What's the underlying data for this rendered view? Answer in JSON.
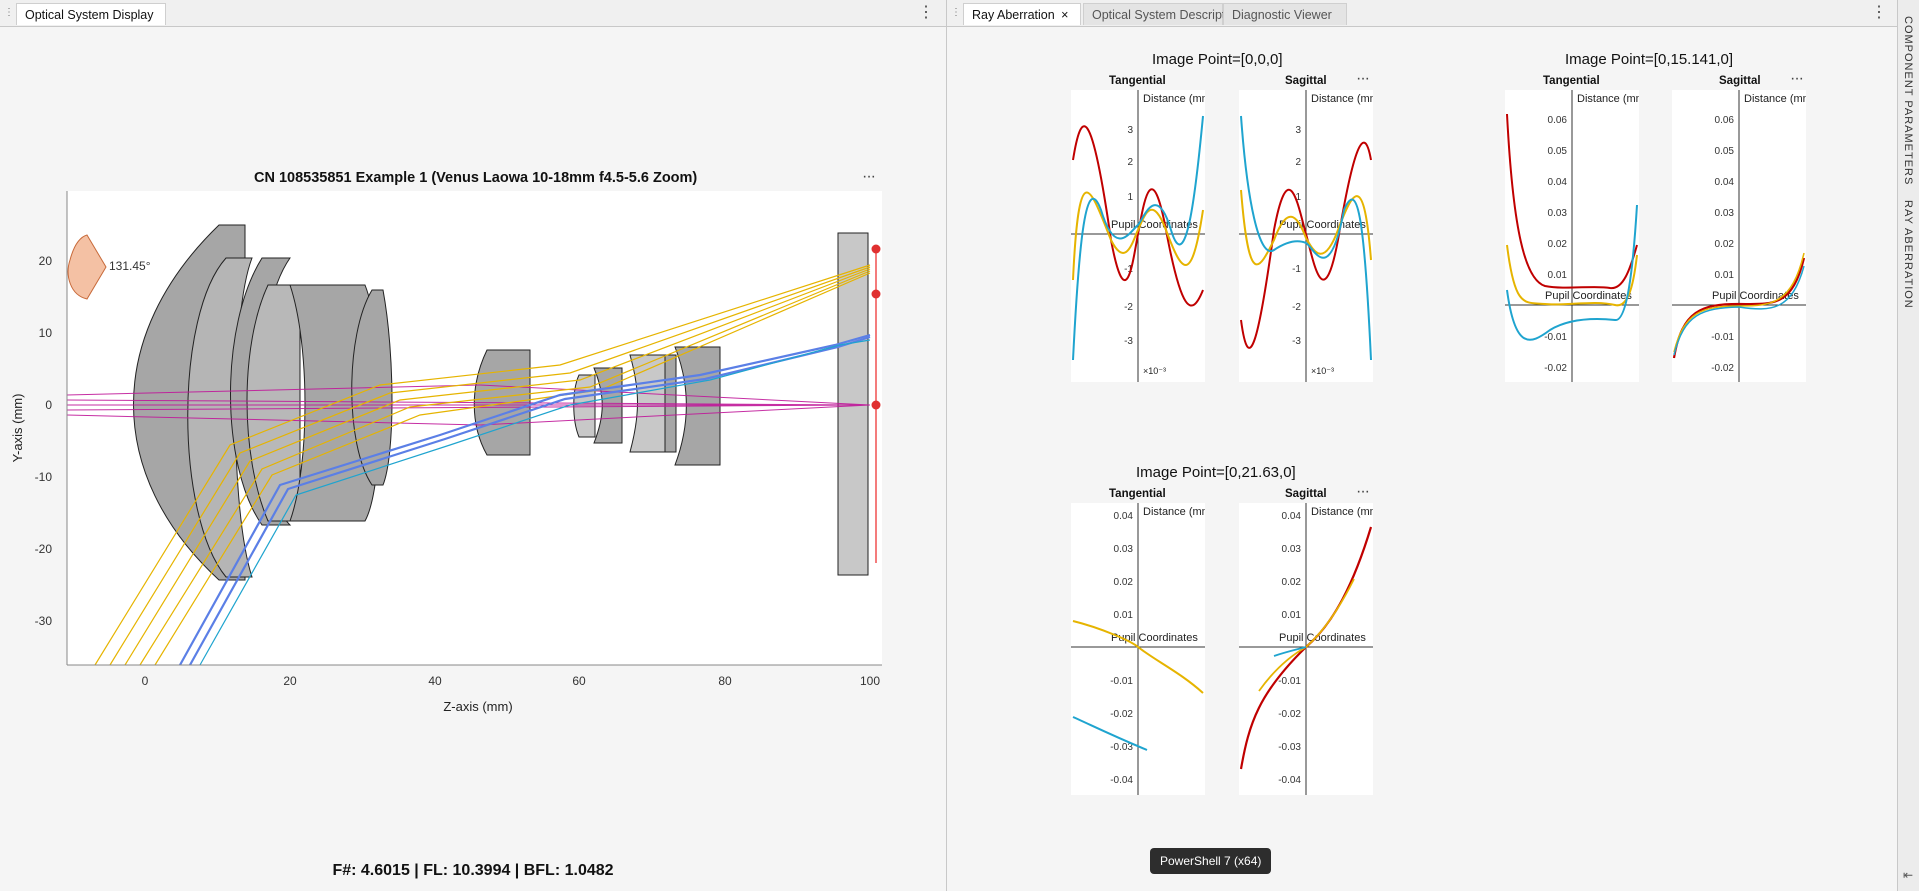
{
  "left_panel": {
    "tab_label": "Optical System Display",
    "plot": {
      "title": "CN 108535851 Example 1 (Venus Laowa 10-18mm f4.5-5.6 Zoom)",
      "xlabel": "Z-axis (mm)",
      "ylabel": "Y-axis (mm)",
      "x_ticks": [
        "0",
        "20",
        "40",
        "60",
        "80",
        "100"
      ],
      "y_ticks": [
        "20",
        "10",
        "0",
        "-10",
        "-20",
        "-30"
      ],
      "fov_label": "131.45°"
    },
    "status": "F#: 4.6015   |   FL: 10.3994   |   BFL: 1.0482"
  },
  "right_panel": {
    "tabs": [
      {
        "label": "Ray Aberration",
        "close": "×"
      },
      {
        "label": "Optical System Description"
      },
      {
        "label": "Diagnostic Viewer"
      }
    ],
    "groups": [
      {
        "title": "Image Point=[0,0,0]",
        "tangential": "Tangential",
        "sagittal": "Sagittal",
        "y_ticks": [
          "3",
          "2",
          "1",
          "0",
          "-1",
          "-2",
          "-3"
        ],
        "scale": "×10⁻³",
        "distance_label": "Distance (mm)",
        "pupil_label": "Pupil Coordinates"
      },
      {
        "title": "Image Point=[0,15.141,0]",
        "tangential": "Tangential",
        "sagittal": "Sagittal",
        "y_ticks": [
          "0.06",
          "0.05",
          "0.04",
          "0.03",
          "0.02",
          "0.01",
          "-0.01",
          "-0.02"
        ],
        "distance_label": "Distance (mm)",
        "pupil_label": "Pupil Coordinates"
      },
      {
        "title": "Image Point=[0,21.63,0]",
        "tangential": "Tangential",
        "sagittal": "Sagittal",
        "y_ticks": [
          "0.04",
          "0.03",
          "0.02",
          "0.01",
          "-0.01",
          "-0.02",
          "-0.03",
          "-0.04"
        ],
        "distance_label": "Distance (mm)",
        "pupil_label": "Pupil Coordinates"
      }
    ]
  },
  "side_tabs": [
    "COMPONENT PARAMETERS",
    "RAY ABERRATION"
  ],
  "tooltip": "PowerShell 7 (x64)",
  "colors": {
    "magenta": "#c0189a",
    "gold": "#e6b400",
    "blue": "#5b7fe6",
    "cyan": "#1fa4cf",
    "red": "#c00000",
    "lens": "#a6a6a6"
  }
}
